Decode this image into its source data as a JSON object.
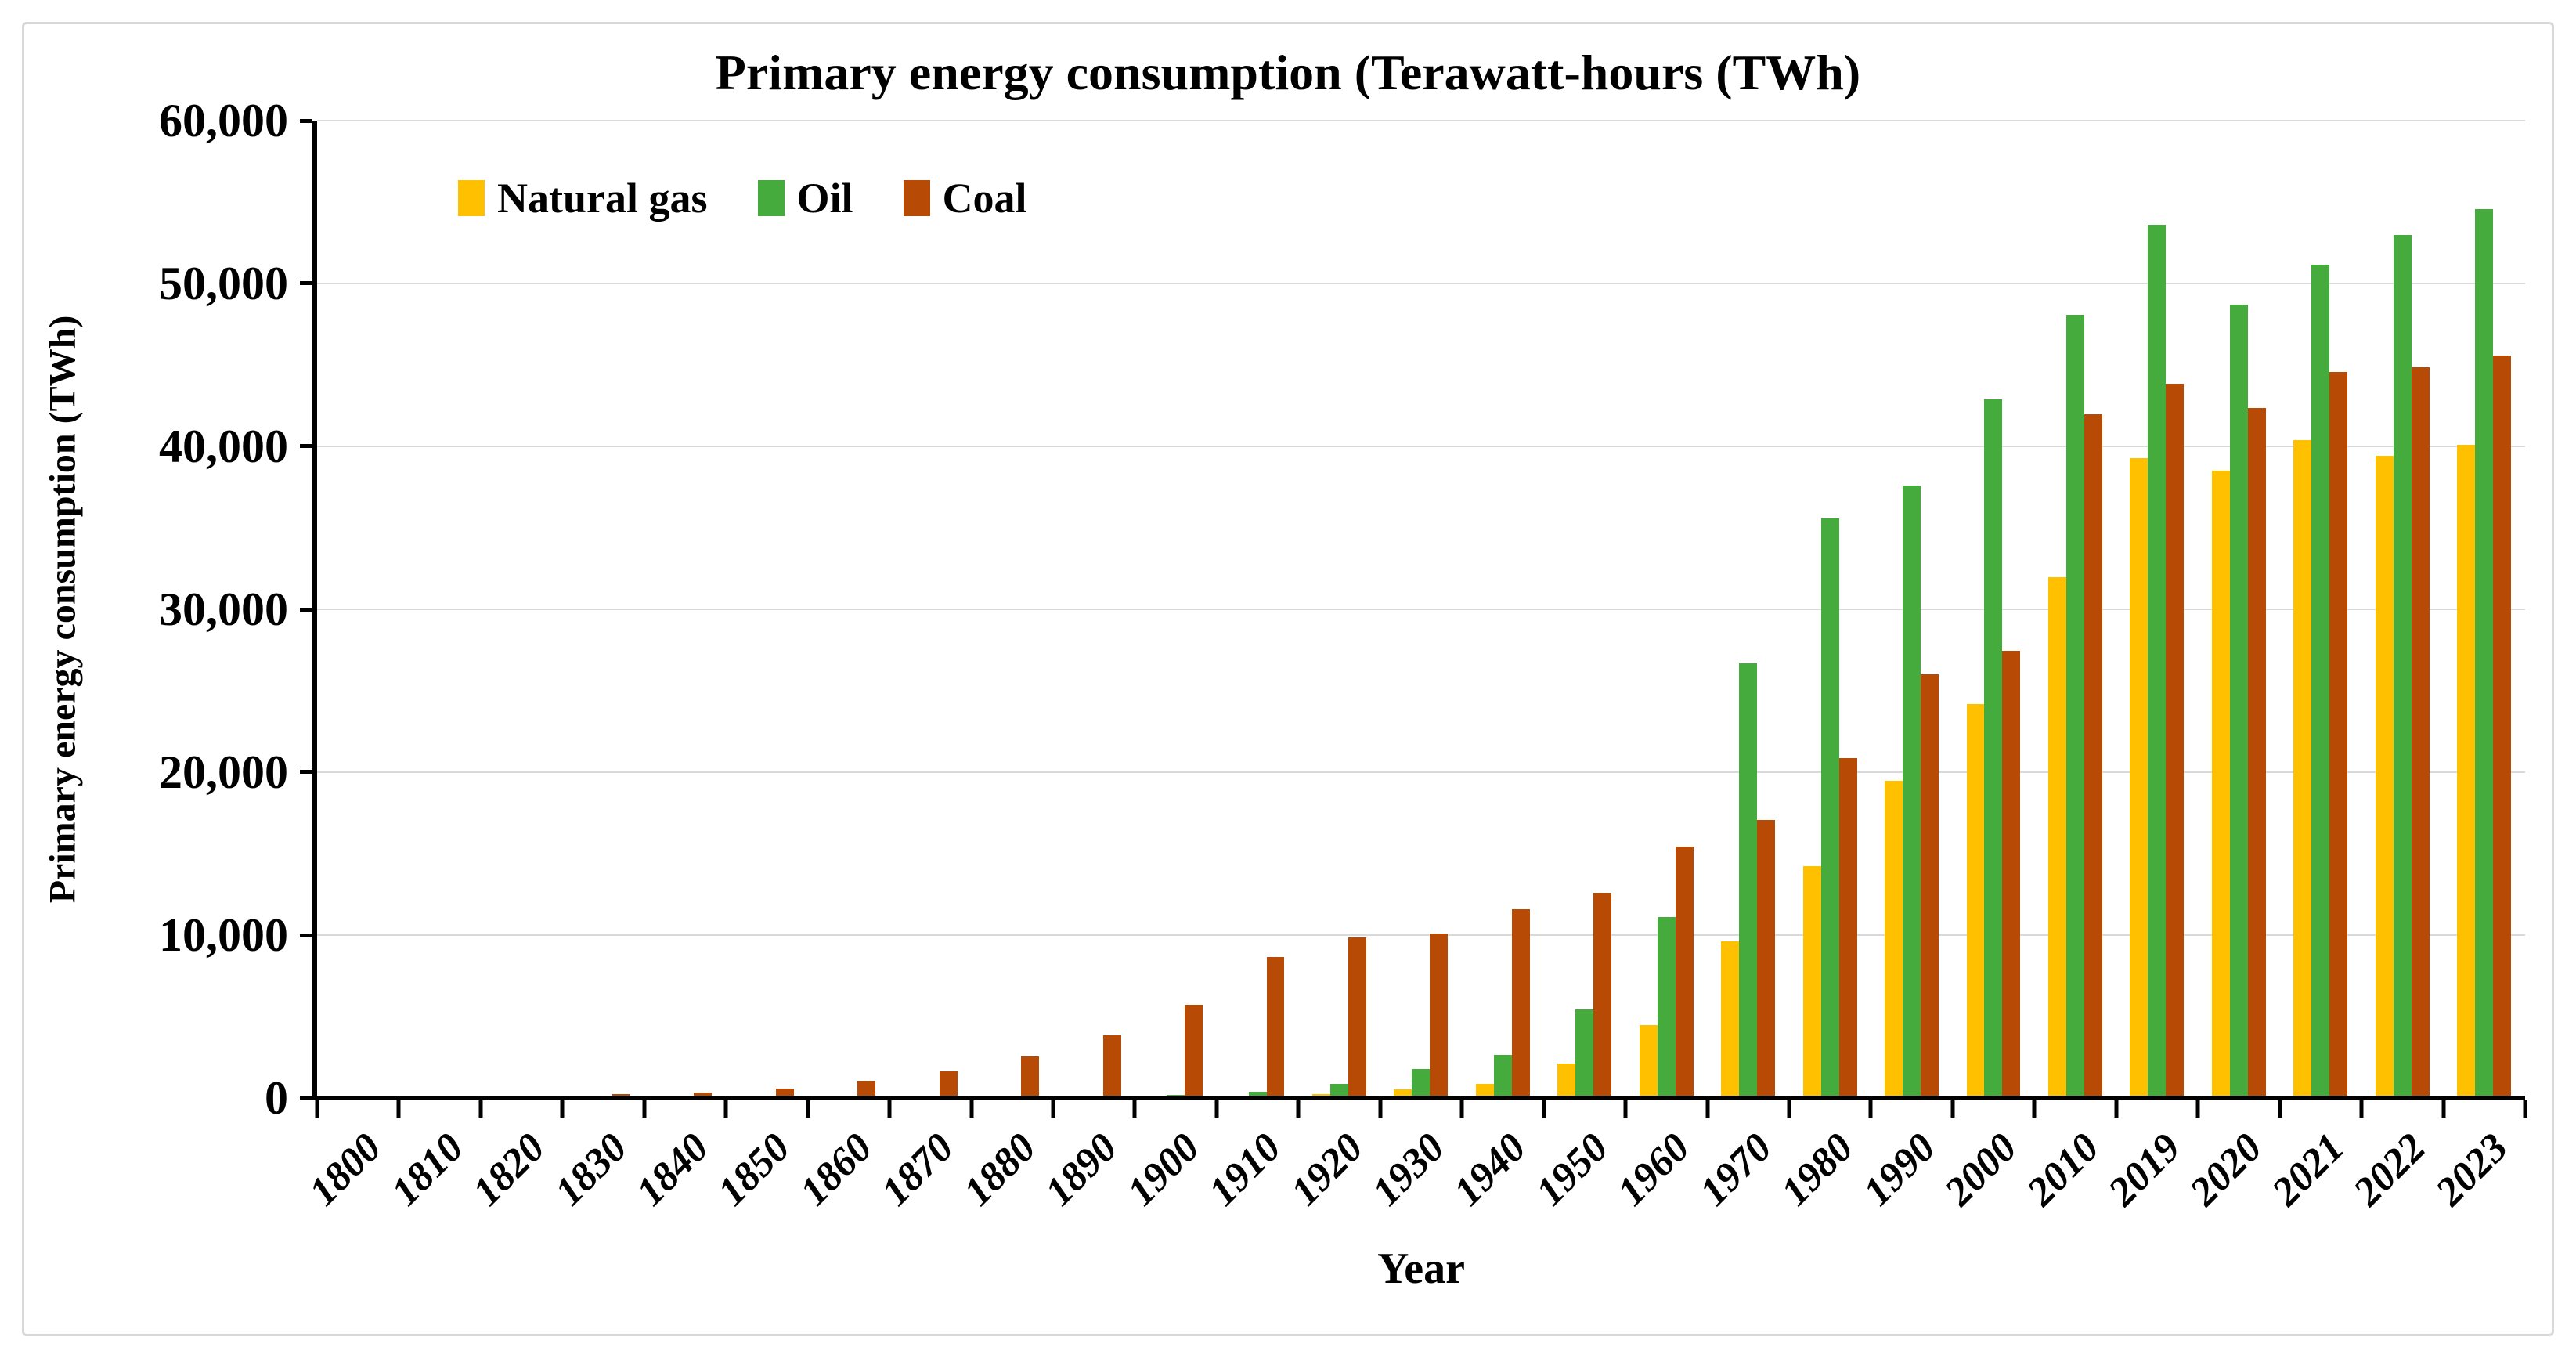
{
  "page": {
    "background_color": "#ffffff",
    "border_color": "#d8d8d8"
  },
  "chart_data": {
    "type": "bar",
    "title": "Primary energy consumption (Terawatt-hours (TWh)",
    "xlabel": "Year",
    "ylabel": "Primary energy consumption (TWh)",
    "ylim": [
      0,
      60000
    ],
    "ytick_interval": 10000,
    "grid": true,
    "gridline_color": "#d9d9d9",
    "axis_color": "#000000",
    "legend_position": "top-left-inside",
    "yticks": [
      {
        "value": 0,
        "label": "0"
      },
      {
        "value": 10000,
        "label": "10,000"
      },
      {
        "value": 20000,
        "label": "20,000"
      },
      {
        "value": 30000,
        "label": "30,000"
      },
      {
        "value": 40000,
        "label": "40,000"
      },
      {
        "value": 50000,
        "label": "50,000"
      },
      {
        "value": 60000,
        "label": "60,000"
      }
    ],
    "categories": [
      "1800",
      "1810",
      "1820",
      "1830",
      "1840",
      "1850",
      "1860",
      "1870",
      "1880",
      "1890",
      "1900",
      "1910",
      "1920",
      "1930",
      "1940",
      "1950",
      "1960",
      "1970",
      "1980",
      "1990",
      "2000",
      "2010",
      "2019",
      "2020",
      "2021",
      "2022",
      "2023"
    ],
    "series": [
      {
        "name": "Natural gas",
        "color": "#FFC000",
        "values": [
          0,
          0,
          0,
          0,
          0,
          0,
          0,
          0,
          5,
          10,
          60,
          140,
          230,
          550,
          870,
          2100,
          4470,
          9610,
          14240,
          19480,
          24160,
          31950,
          39290,
          38530,
          40380,
          39410,
          40100
        ]
      },
      {
        "name": "Oil",
        "color": "#44AB3C",
        "values": [
          0,
          0,
          0,
          0,
          0,
          0,
          5,
          10,
          30,
          90,
          180,
          400,
          890,
          1760,
          2650,
          5440,
          11100,
          26660,
          35580,
          37590,
          42880,
          48100,
          53620,
          48710,
          51170,
          52970,
          54560
        ]
      },
      {
        "name": "Coal",
        "color": "#B74A05",
        "values": [
          100,
          130,
          150,
          260,
          360,
          570,
          1060,
          1640,
          2540,
          3860,
          5730,
          8660,
          9870,
          10100,
          11590,
          12600,
          15440,
          17060,
          20860,
          26000,
          27430,
          41960,
          43830,
          42340,
          44560,
          44850,
          45570
        ]
      }
    ]
  }
}
